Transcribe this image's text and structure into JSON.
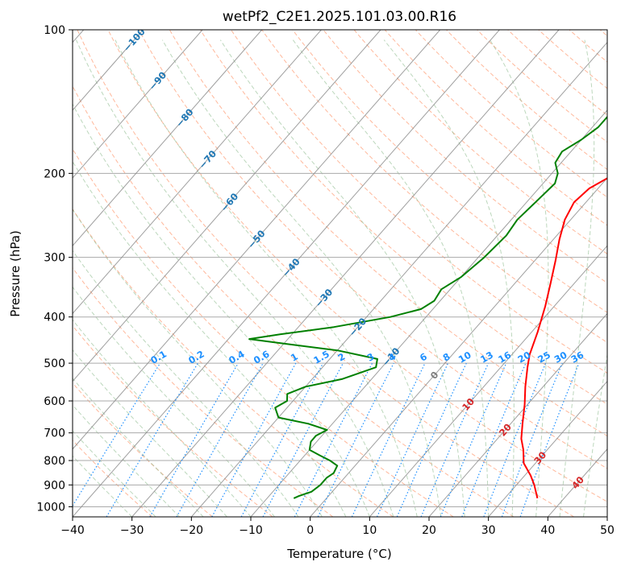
{
  "chart_data": {
    "type": "line",
    "title": "wetPf2_C2E1.2025.101.03.00.R16",
    "xlabel": "Temperature (°C)",
    "ylabel": "Pressure (hPa)",
    "xlim": [
      -40,
      50
    ],
    "ylim": [
      1050,
      100
    ],
    "y_scale": "log",
    "grid": true,
    "x_ticks": [
      "−40",
      "−30",
      "−20",
      "−10",
      "0",
      "10",
      "20",
      "30",
      "40",
      "50"
    ],
    "y_ticks": [
      "100",
      "200",
      "300",
      "400",
      "500",
      "600",
      "700",
      "800",
      "900",
      "1000"
    ],
    "series": [
      {
        "color": "#ff0000",
        "points": [
          [
            35.5,
            960
          ],
          [
            33,
            900
          ],
          [
            31,
            860
          ],
          [
            28,
            810
          ],
          [
            26,
            760
          ],
          [
            24,
            720
          ],
          [
            22,
            670
          ],
          [
            19.5,
            610
          ],
          [
            17,
            560
          ],
          [
            14.5,
            510
          ],
          [
            13,
            480
          ],
          [
            11,
            430
          ],
          [
            8.5,
            380
          ],
          [
            6,
            340
          ],
          [
            3.5,
            305
          ],
          [
            1,
            275
          ],
          [
            -1,
            250
          ],
          [
            -2,
            230
          ],
          [
            -1.5,
            215
          ],
          [
            0,
            205
          ],
          [
            3,
            195
          ],
          [
            7,
            187
          ],
          [
            9,
            180
          ],
          [
            10,
            170
          ],
          [
            10.5,
            160
          ],
          [
            11,
            150
          ],
          [
            11.5,
            140
          ],
          [
            12,
            130
          ],
          [
            12.5,
            120
          ],
          [
            12.5,
            112
          ],
          [
            12,
            104
          ],
          [
            12,
            100
          ]
        ]
      },
      {
        "color": "#008000",
        "points": [
          [
            -5.5,
            960
          ],
          [
            -5,
            950
          ],
          [
            -3.5,
            930
          ],
          [
            -3,
            900
          ],
          [
            -3,
            870
          ],
          [
            -2.5,
            850
          ],
          [
            -3,
            820
          ],
          [
            -5,
            800
          ],
          [
            -7.5,
            780
          ],
          [
            -10,
            760
          ],
          [
            -11,
            730
          ],
          [
            -11,
            710
          ],
          [
            -10,
            690
          ],
          [
            -14,
            670
          ],
          [
            -20,
            650
          ],
          [
            -22,
            620
          ],
          [
            -21,
            600
          ],
          [
            -22,
            580
          ],
          [
            -20,
            560
          ],
          [
            -15,
            540
          ],
          [
            -11,
            510
          ],
          [
            -12,
            490
          ],
          [
            -20,
            470
          ],
          [
            -30,
            455
          ],
          [
            -36.5,
            445
          ],
          [
            -32,
            435
          ],
          [
            -24,
            420
          ],
          [
            -16,
            400
          ],
          [
            -12,
            385
          ],
          [
            -11,
            370
          ],
          [
            -11.5,
            350
          ],
          [
            -10,
            330
          ],
          [
            -9,
            300
          ],
          [
            -8.5,
            270
          ],
          [
            -9,
            250
          ],
          [
            -8.5,
            230
          ],
          [
            -8,
            210
          ],
          [
            -9,
            200
          ],
          [
            -11,
            190
          ],
          [
            -11.5,
            180
          ],
          [
            -10,
            170
          ],
          [
            -9,
            160
          ],
          [
            -9,
            150
          ],
          [
            -8,
            140
          ],
          [
            -6,
            130
          ],
          [
            -4,
            120
          ],
          [
            -1,
            110
          ],
          [
            0,
            104
          ],
          [
            1,
            100
          ]
        ]
      }
    ],
    "isotherm_labels": [
      "−100",
      "−90",
      "−80",
      "−70",
      "−60",
      "−50",
      "−40",
      "−30",
      "−20",
      "−10",
      "0",
      "10",
      "20",
      "30",
      "40"
    ],
    "mixing_ratio_labels": [
      "0.1",
      "0.2",
      "0.4",
      "0.6",
      "1",
      "1.5",
      "2",
      "3",
      "4",
      "6",
      "8",
      "10",
      "13",
      "16",
      "20",
      "25",
      "30",
      "36"
    ]
  },
  "colors": {
    "temperature": "#ff0000",
    "dewpoint": "#008000",
    "isotherm_label_cold": "#1f77b4",
    "isotherm_label_zero": "#7f7f7f",
    "isotherm_label_warm": "#d62728",
    "mixing_ratio": "#1e90ff",
    "dry_adiabat": "#ffa07a",
    "moist_adiabat": "#8fbc8f",
    "isotherm": "#888888",
    "isobar": "#aaaaaa"
  }
}
